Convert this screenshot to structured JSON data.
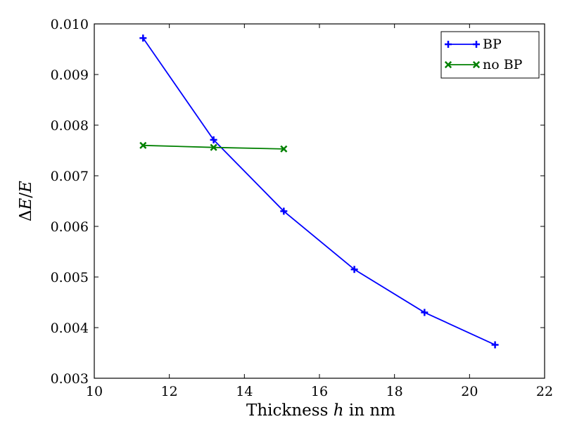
{
  "chart_data": {
    "type": "line",
    "title": "",
    "xlabel": "Thickness h in nm",
    "xlabel_parts": [
      "Thickness ",
      "h",
      " in nm"
    ],
    "ylabel": "ΔE/E",
    "ylabel_parts": [
      "Δ",
      "E",
      "/",
      "E"
    ],
    "xlim": [
      10,
      22
    ],
    "ylim": [
      0.003,
      0.01
    ],
    "x_ticks": [
      10,
      12,
      14,
      16,
      18,
      20,
      22
    ],
    "x_tick_labels": [
      "10",
      "12",
      "14",
      "16",
      "18",
      "20",
      "22"
    ],
    "y_ticks": [
      0.003,
      0.004,
      0.005,
      0.006,
      0.007,
      0.008,
      0.009,
      0.01
    ],
    "y_tick_labels": [
      "0.003",
      "0.004",
      "0.005",
      "0.006",
      "0.007",
      "0.008",
      "0.009",
      "0.010"
    ],
    "grid": false,
    "legend_position": "top-right",
    "series": [
      {
        "name": "BP",
        "color": "#0000ff",
        "marker": "plus",
        "x": [
          11.3,
          13.18,
          15.05,
          16.93,
          18.8,
          20.68
        ],
        "y": [
          0.00972,
          0.00771,
          0.0063,
          0.00515,
          0.0043,
          0.00366
        ]
      },
      {
        "name": "no BP",
        "color": "#008000",
        "marker": "x",
        "x": [
          11.3,
          13.18,
          15.05
        ],
        "y": [
          0.0076,
          0.00756,
          0.00753
        ]
      }
    ]
  }
}
